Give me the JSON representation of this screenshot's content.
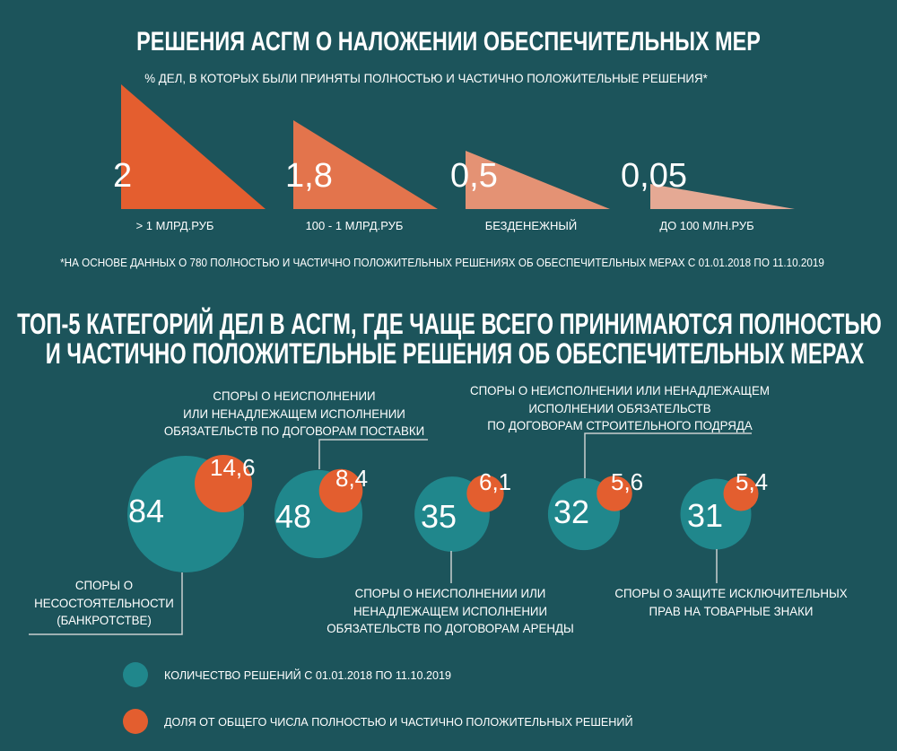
{
  "colors": {
    "background": "#1C545B",
    "text": "#FFFFFF",
    "leader_line": "#C9CFCF",
    "teal": "#20878C",
    "orange": "#E35E2F"
  },
  "chart_data": [
    {
      "type": "bar",
      "mark": "right-triangle",
      "title": "РЕШЕНИЯ АСГМ О НАЛОЖЕНИИ ОБЕСПЕЧИТЕЛЬНЫХ МЕР",
      "subtitle": "% ДЕЛ, В КОТОРЫХ БЫЛИ ПРИНЯТЫ ПОЛНОСТЬЮ И ЧАСТИЧНО ПОЛОЖИТЕЛЬНЫЕ РЕШЕНИЯ*",
      "categories": [
        "> 1 МЛРД.РУБ",
        "100 - 1 МЛРД.РУБ",
        "БЕЗДЕНЕЖНЫЙ",
        "ДО 100 МЛН.РУБ"
      ],
      "values": [
        2,
        1.8,
        0.5,
        0.05
      ],
      "value_labels": [
        "2",
        "1,8",
        "0,5",
        "0,05"
      ],
      "unit": "%",
      "colors": [
        "#E45E2F",
        "#E3744C",
        "#E49274",
        "#E5A994"
      ],
      "xlabel": "",
      "ylabel": "",
      "grid": false,
      "footnote": "*НА ОСНОВЕ ДАННЫХ О 780 ПОЛНОСТЬЮ И ЧАСТИЧНО ПОЛОЖИТЕЛЬНЫХ РЕШЕНИЯХ ОБ ОБЕСПЕЧИТЕЛЬНЫХ МЕРАХ С 01.01.2018 ПО 11.10.2019"
    },
    {
      "type": "scatter",
      "mark": "bubble",
      "title_lines": [
        "ТОП-5 КАТЕГОРИЙ ДЕЛ В АСГМ, ГДЕ ЧАЩЕ ВСЕГО ПРИНИМАЮТСЯ ПОЛНОСТЬЮ",
        "И ЧАСТИЧНО ПОЛОЖИТЕЛЬНЫЕ РЕШЕНИЯ ОБ ОБЕСПЕЧИТЕЛЬНЫХ МЕРАХ"
      ],
      "categories": [
        "СПОРЫ О\nНЕСОСТОЯТЕЛЬНОСТИ\n(БАНКРОТСТВЕ)",
        "СПОРЫ О НЕИСПОЛНЕНИИ\nИЛИ НЕНАДЛЕЖАЩЕМ ИСПОЛНЕНИИ\nОБЯЗАТЕЛЬСТВ ПО ДОГОВОРАМ ПОСТАВКИ",
        "СПОРЫ О НЕИСПОЛНЕНИИ ИЛИ\nНЕНАДЛЕЖАЩЕМ ИСПОЛНЕНИИ\nОБЯЗАТЕЛЬСТВ ПО ДОГОВОРАМ АРЕНДЫ",
        "СПОРЫ О НЕИСПОЛНЕНИИ ИЛИ НЕНАДЛЕЖАЩЕМ\nИСПОЛНЕНИИ ОБЯЗАТЕЛЬСТВ\nПО ДОГОВОРАМ СТРОИТЕЛЬНОГО ПОДРЯДА",
        "СПОРЫ О ЗАЩИТЕ ИСКЛЮЧИТЕЛЬНЫХ\nПРАВ НА ТОВАРНЫЕ ЗНАКИ"
      ],
      "series": [
        {
          "name": "КОЛИЧЕСТВО РЕШЕНИЙ С 01.01.2018 ПО 11.10.2019",
          "values": [
            84,
            48,
            35,
            32,
            31
          ],
          "value_labels": [
            "84",
            "48",
            "35",
            "32",
            "31"
          ],
          "color": "#20878C"
        },
        {
          "name": "ДОЛЯ ОТ ОБЩЕГО ЧИСЛА ПОЛНОСТЬЮ И ЧАСТИЧНО ПОЛОЖИТЕЛЬНЫХ РЕШЕНИЙ",
          "values": [
            14.6,
            8.4,
            6.1,
            5.6,
            5.4
          ],
          "value_labels": [
            "14,6",
            "8,4",
            "6,1",
            "5,6",
            "5,4"
          ],
          "unit": "%",
          "color": "#E35E2F"
        }
      ],
      "grid": false,
      "legend": "bottom-left"
    }
  ]
}
